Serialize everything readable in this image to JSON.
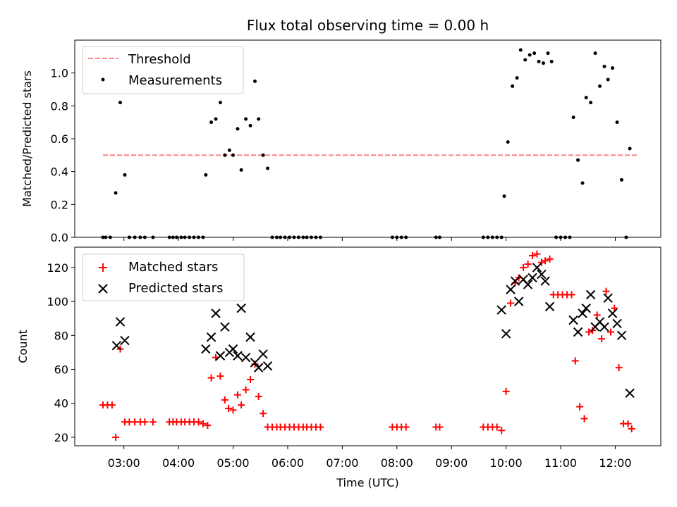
{
  "chart_data": [
    {
      "type": "scatter",
      "title": "Flux total observing time = 0.00 h",
      "xlabel": "",
      "ylabel": "Matched/Predicted stars",
      "xlim": [
        "02:06",
        "12:50"
      ],
      "ylim": [
        0,
        1.2
      ],
      "x_ticks": [
        "03:00",
        "04:00",
        "05:00",
        "06:00",
        "07:00",
        "08:00",
        "09:00",
        "10:00",
        "11:00",
        "12:00"
      ],
      "y_ticks": [
        "0.0",
        "0.2",
        "0.4",
        "0.6",
        "0.8",
        "1.0"
      ],
      "y_tick_values": [
        0,
        0.2,
        0.4,
        0.6,
        0.8,
        1.0
      ],
      "grid": false,
      "legend_position": "top-left",
      "series": [
        {
          "name": "Threshold",
          "kind": "dashed-line",
          "color": "#ff7f7f",
          "points": [
            [
              "02:37",
              0.5
            ],
            [
              "12:25",
              0.5
            ]
          ]
        },
        {
          "name": "Measurements",
          "kind": "dots",
          "color": "#000000",
          "points": [
            [
              "02:37",
              0
            ],
            [
              "02:40",
              0
            ],
            [
              "02:45",
              0
            ],
            [
              "02:51",
              0.27
            ],
            [
              "02:56",
              0.82
            ],
            [
              "03:01",
              0.38
            ],
            [
              "03:06",
              0
            ],
            [
              "03:12",
              0
            ],
            [
              "03:18",
              0
            ],
            [
              "03:23",
              0
            ],
            [
              "03:32",
              0
            ],
            [
              "03:50",
              0
            ],
            [
              "03:54",
              0
            ],
            [
              "03:58",
              0
            ],
            [
              "04:03",
              0
            ],
            [
              "04:07",
              0
            ],
            [
              "04:12",
              0
            ],
            [
              "04:17",
              0
            ],
            [
              "04:22",
              0
            ],
            [
              "04:27",
              0
            ],
            [
              "04:30",
              0.38
            ],
            [
              "04:36",
              0.7
            ],
            [
              "04:41",
              0.72
            ],
            [
              "04:46",
              0.82
            ],
            [
              "04:51",
              0.5
            ],
            [
              "04:56",
              0.53
            ],
            [
              "05:00",
              0.5
            ],
            [
              "05:05",
              0.66
            ],
            [
              "05:09",
              0.41
            ],
            [
              "05:14",
              0.72
            ],
            [
              "05:19",
              0.68
            ],
            [
              "05:24",
              0.95
            ],
            [
              "05:28",
              0.72
            ],
            [
              "05:33",
              0.5
            ],
            [
              "05:38",
              0.42
            ],
            [
              "05:43",
              0
            ],
            [
              "05:48",
              0
            ],
            [
              "05:52",
              0
            ],
            [
              "05:57",
              0
            ],
            [
              "06:02",
              0
            ],
            [
              "06:07",
              0
            ],
            [
              "06:12",
              0
            ],
            [
              "06:17",
              0
            ],
            [
              "06:21",
              0
            ],
            [
              "06:26",
              0
            ],
            [
              "06:31",
              0
            ],
            [
              "06:36",
              0
            ],
            [
              "07:55",
              0
            ],
            [
              "08:00",
              0
            ],
            [
              "08:05",
              0
            ],
            [
              "08:10",
              0
            ],
            [
              "08:43",
              0
            ],
            [
              "08:47",
              0
            ],
            [
              "09:35",
              0
            ],
            [
              "09:40",
              0
            ],
            [
              "09:45",
              0
            ],
            [
              "09:50",
              0
            ],
            [
              "09:55",
              0
            ],
            [
              "09:58",
              0.25
            ],
            [
              "10:02",
              0.58
            ],
            [
              "10:07",
              0.92
            ],
            [
              "10:12",
              0.97
            ],
            [
              "10:16",
              1.14
            ],
            [
              "10:21",
              1.08
            ],
            [
              "10:26",
              1.11
            ],
            [
              "10:31",
              1.12
            ],
            [
              "10:36",
              1.07
            ],
            [
              "10:41",
              1.06
            ],
            [
              "10:46",
              1.12
            ],
            [
              "10:50",
              1.07
            ],
            [
              "10:55",
              0
            ],
            [
              "11:00",
              0
            ],
            [
              "11:05",
              0
            ],
            [
              "11:10",
              0
            ],
            [
              "11:14",
              0.73
            ],
            [
              "11:19",
              0.47
            ],
            [
              "11:24",
              0.33
            ],
            [
              "11:28",
              0.85
            ],
            [
              "11:33",
              0.82
            ],
            [
              "11:38",
              1.12
            ],
            [
              "11:43",
              0.92
            ],
            [
              "11:48",
              1.04
            ],
            [
              "11:52",
              0.96
            ],
            [
              "11:57",
              1.03
            ],
            [
              "12:02",
              0.7
            ],
            [
              "12:07",
              0.35
            ],
            [
              "12:12",
              0
            ],
            [
              "12:16",
              0.54
            ]
          ]
        }
      ]
    },
    {
      "type": "scatter",
      "title": "",
      "xlabel": "Time (UTC)",
      "ylabel": "Count",
      "xlim": [
        "02:06",
        "12:50"
      ],
      "ylim": [
        15,
        132
      ],
      "x_ticks": [
        "03:00",
        "04:00",
        "05:00",
        "06:00",
        "07:00",
        "08:00",
        "09:00",
        "10:00",
        "11:00",
        "12:00"
      ],
      "y_ticks": [
        "20",
        "40",
        "60",
        "80",
        "100",
        "120"
      ],
      "y_tick_values": [
        20,
        40,
        60,
        80,
        100,
        120
      ],
      "grid": false,
      "legend_position": "top-left",
      "series": [
        {
          "name": "Matched stars",
          "kind": "plus",
          "color": "#ff0000",
          "points": [
            [
              "02:37",
              39
            ],
            [
              "02:42",
              39
            ],
            [
              "02:47",
              39
            ],
            [
              "02:51",
              20
            ],
            [
              "02:56",
              72
            ],
            [
              "03:01",
              29
            ],
            [
              "03:06",
              29
            ],
            [
              "03:12",
              29
            ],
            [
              "03:18",
              29
            ],
            [
              "03:23",
              29
            ],
            [
              "03:32",
              29
            ],
            [
              "03:50",
              29
            ],
            [
              "03:54",
              29
            ],
            [
              "03:58",
              29
            ],
            [
              "04:03",
              29
            ],
            [
              "04:07",
              29
            ],
            [
              "04:12",
              29
            ],
            [
              "04:17",
              29
            ],
            [
              "04:22",
              29
            ],
            [
              "04:27",
              28
            ],
            [
              "04:32",
              27
            ],
            [
              "04:36",
              55
            ],
            [
              "04:41",
              67
            ],
            [
              "04:46",
              56
            ],
            [
              "04:51",
              42
            ],
            [
              "04:55",
              37
            ],
            [
              "05:00",
              36
            ],
            [
              "05:05",
              45
            ],
            [
              "05:09",
              39
            ],
            [
              "05:14",
              48
            ],
            [
              "05:19",
              54
            ],
            [
              "05:24",
              63
            ],
            [
              "05:28",
              44
            ],
            [
              "05:33",
              34
            ],
            [
              "05:38",
              26
            ],
            [
              "05:43",
              26
            ],
            [
              "05:48",
              26
            ],
            [
              "05:52",
              26
            ],
            [
              "05:57",
              26
            ],
            [
              "06:02",
              26
            ],
            [
              "06:07",
              26
            ],
            [
              "06:12",
              26
            ],
            [
              "06:17",
              26
            ],
            [
              "06:21",
              26
            ],
            [
              "06:26",
              26
            ],
            [
              "06:31",
              26
            ],
            [
              "06:36",
              26
            ],
            [
              "07:55",
              26
            ],
            [
              "08:00",
              26
            ],
            [
              "08:05",
              26
            ],
            [
              "08:10",
              26
            ],
            [
              "08:43",
              26
            ],
            [
              "08:47",
              26
            ],
            [
              "09:35",
              26
            ],
            [
              "09:40",
              26
            ],
            [
              "09:45",
              26
            ],
            [
              "09:50",
              26
            ],
            [
              "09:55",
              24
            ],
            [
              "10:00",
              47
            ],
            [
              "10:05",
              99
            ],
            [
              "10:10",
              111
            ],
            [
              "10:14",
              114
            ],
            [
              "10:19",
              120
            ],
            [
              "10:24",
              122
            ],
            [
              "10:29",
              127
            ],
            [
              "10:34",
              128
            ],
            [
              "10:39",
              123
            ],
            [
              "10:43",
              124
            ],
            [
              "10:48",
              125
            ],
            [
              "10:52",
              104
            ],
            [
              "10:57",
              104
            ],
            [
              "11:02",
              104
            ],
            [
              "11:07",
              104
            ],
            [
              "11:12",
              104
            ],
            [
              "11:16",
              65
            ],
            [
              "11:21",
              38
            ],
            [
              "11:26",
              31
            ],
            [
              "11:31",
              82
            ],
            [
              "11:35",
              83
            ],
            [
              "11:40",
              92
            ],
            [
              "11:45",
              78
            ],
            [
              "11:50",
              106
            ],
            [
              "11:55",
              82
            ],
            [
              "11:59",
              96
            ],
            [
              "12:04",
              61
            ],
            [
              "12:09",
              28
            ],
            [
              "12:14",
              28
            ],
            [
              "12:18",
              25
            ]
          ]
        },
        {
          "name": "Predicted stars",
          "kind": "cross",
          "color": "#000000",
          "points": [
            [
              "02:52",
              74
            ],
            [
              "02:56",
              88
            ],
            [
              "03:01",
              77
            ],
            [
              "04:30",
              72
            ],
            [
              "04:36",
              79
            ],
            [
              "04:41",
              93
            ],
            [
              "04:46",
              68
            ],
            [
              "04:51",
              85
            ],
            [
              "04:56",
              70
            ],
            [
              "05:00",
              72
            ],
            [
              "05:05",
              68
            ],
            [
              "05:09",
              96
            ],
            [
              "05:14",
              67
            ],
            [
              "05:19",
              79
            ],
            [
              "05:24",
              64
            ],
            [
              "05:28",
              61
            ],
            [
              "05:33",
              69
            ],
            [
              "05:38",
              62
            ],
            [
              "09:55",
              95
            ],
            [
              "10:00",
              81
            ],
            [
              "10:05",
              107
            ],
            [
              "10:10",
              112
            ],
            [
              "10:14",
              100
            ],
            [
              "10:19",
              113
            ],
            [
              "10:24",
              110
            ],
            [
              "10:29",
              114
            ],
            [
              "10:34",
              120
            ],
            [
              "10:39",
              116
            ],
            [
              "10:43",
              112
            ],
            [
              "10:48",
              97
            ],
            [
              "11:14",
              89
            ],
            [
              "11:19",
              82
            ],
            [
              "11:24",
              93
            ],
            [
              "11:28",
              96
            ],
            [
              "11:33",
              104
            ],
            [
              "11:38",
              85
            ],
            [
              "11:43",
              88
            ],
            [
              "11:48",
              85
            ],
            [
              "11:52",
              102
            ],
            [
              "11:57",
              93
            ],
            [
              "12:02",
              87
            ],
            [
              "12:07",
              80
            ],
            [
              "12:16",
              46
            ]
          ]
        }
      ]
    }
  ]
}
